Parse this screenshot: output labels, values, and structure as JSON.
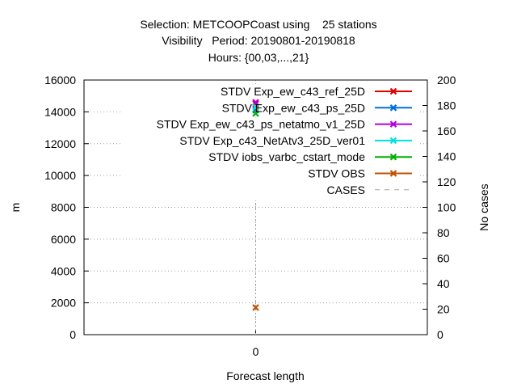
{
  "chart_data": {
    "type": "scatter",
    "title_lines": [
      "Selection: METCOOPCoast using    25 stations",
      "Visibility   Period: 20190801-20190818",
      "Hours: {00,03,...,21}"
    ],
    "xlabel": "Forecast length",
    "ylabel": "m",
    "y2label": "No cases",
    "x_ticks": [
      "0"
    ],
    "ylim": [
      0,
      16000
    ],
    "y_ticks": [
      "0",
      "2000",
      "4000",
      "6000",
      "8000",
      "10000",
      "12000",
      "14000",
      "16000"
    ],
    "y2lim": [
      0,
      200
    ],
    "y2_ticks": [
      "0",
      "20",
      "40",
      "60",
      "80",
      "100",
      "120",
      "140",
      "160",
      "180",
      "200"
    ],
    "grid": true,
    "legend_position": "top-right",
    "series": [
      {
        "name": "STDV Exp_ew_c43_ref_25D",
        "color": "#e00000",
        "x": [
          "0"
        ],
        "values": [
          14500
        ]
      },
      {
        "name": "STDV Exp_ew_c43_ps_25D",
        "color": "#0070e0",
        "x": [
          "0"
        ],
        "values": [
          14100
        ]
      },
      {
        "name": "STDV Exp_ew_c43_ps_netatmo_v1_25D",
        "color": "#b000e0",
        "x": [
          "0"
        ],
        "values": [
          14600
        ]
      },
      {
        "name": "STDV Exp_c43_NetAtv3_25D_ver01",
        "color": "#00e0e0",
        "x": [
          "0"
        ],
        "values": [
          14300
        ]
      },
      {
        "name": "STDV iobs_varbc_cstart_mode",
        "color": "#00b000",
        "x": [
          "0"
        ],
        "values": [
          13900
        ]
      },
      {
        "name": "STDV OBS",
        "color": "#c05000",
        "x": [
          "0"
        ],
        "values": [
          1700
        ]
      },
      {
        "name": "CASES",
        "color": "#a0a0a0",
        "x": [
          "0"
        ],
        "values": [
          110
        ],
        "axis": "y2",
        "style": "dashed-bar"
      }
    ]
  }
}
